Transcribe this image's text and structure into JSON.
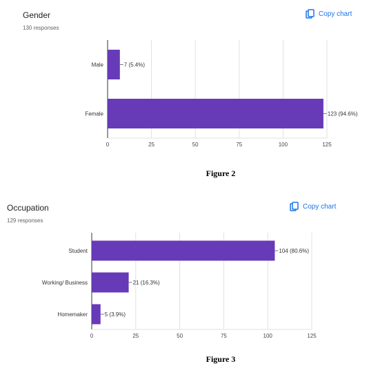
{
  "charts": [
    {
      "title": "Gender",
      "responses": "130 responses",
      "copy_label": "Copy chart",
      "caption": "Figure 2",
      "chart_data": {
        "type": "bar",
        "orientation": "horizontal",
        "categories": [
          "Male",
          "Female"
        ],
        "values": [
          7,
          123
        ],
        "data_labels": [
          "7 (5.4%)",
          "123 (94.6%)"
        ],
        "xlim": [
          0,
          125
        ],
        "xticks": [
          0,
          25,
          50,
          75,
          100,
          125
        ],
        "bar_color": "#673ab7",
        "grid": true
      }
    },
    {
      "title": "Occupation",
      "responses": "129 responses",
      "copy_label": "Copy chart",
      "caption": "Figure 3",
      "chart_data": {
        "type": "bar",
        "orientation": "horizontal",
        "categories": [
          "Student",
          "Working/ Business",
          "Homemaker"
        ],
        "values": [
          104,
          21,
          5
        ],
        "data_labels": [
          "104 (80.6%)",
          "21 (16.3%)",
          "5 (3.9%)"
        ],
        "xlim": [
          0,
          125
        ],
        "xticks": [
          0,
          25,
          50,
          75,
          100,
          125
        ],
        "bar_color": "#673ab7",
        "grid": true
      }
    }
  ]
}
